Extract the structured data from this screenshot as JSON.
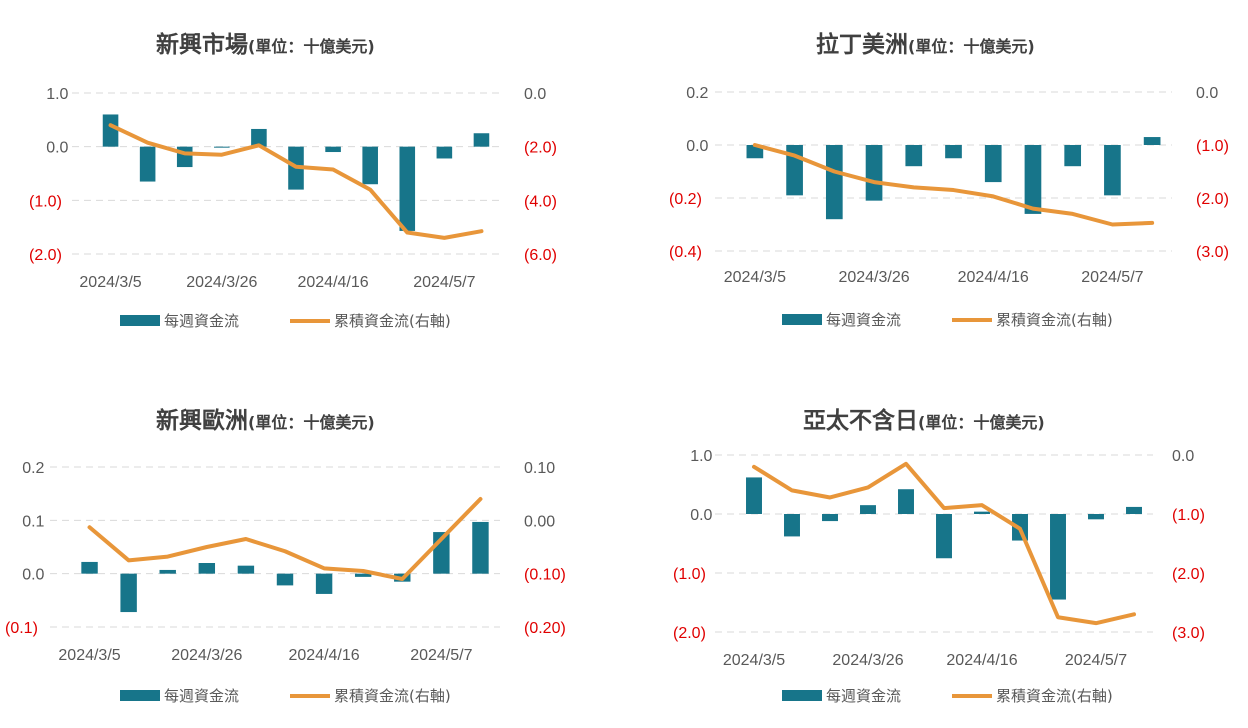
{
  "colors": {
    "bar": "#17758a",
    "line": "#e8963a",
    "text": "#595959",
    "negative": "#e00000",
    "grid": "#d9d9d9",
    "title": "#404040"
  },
  "legend": {
    "bar_label": "每週資金流",
    "line_label": "累積資金流(右軸)"
  },
  "chart_data": [
    {
      "type": "bar+line",
      "title": "新興市場",
      "unit": "(單位：十億美元)",
      "x_ticks": [
        "2024/3/5",
        "2024/3/26",
        "2024/4/16",
        "2024/5/7"
      ],
      "yleft": {
        "ticks": [
          1.0,
          0.0,
          -1.0,
          -2.0
        ],
        "labels": [
          "1.0",
          "0.0",
          "(1.0)",
          "(2.0)"
        ]
      },
      "yright": {
        "ticks": [
          0.0,
          -2.0,
          -4.0,
          -6.0
        ],
        "labels": [
          "0.0",
          "(2.0)",
          "(4.0)",
          "(6.0)"
        ]
      },
      "weekly_flow": [
        0.6,
        -0.65,
        -0.38,
        0.0,
        0.33,
        -0.8,
        -0.1,
        -0.7,
        -1.57,
        -0.22,
        0.25
      ],
      "cumulative_flow": [
        -1.2,
        -1.85,
        -2.25,
        -2.3,
        -1.95,
        -2.75,
        -2.85,
        -3.6,
        -5.2,
        -5.4,
        -5.15
      ]
    },
    {
      "type": "bar+line",
      "title": "拉丁美洲",
      "unit": "(單位：十億美元)",
      "x_ticks": [
        "2024/3/5",
        "2024/3/26",
        "2024/4/16",
        "2024/5/7"
      ],
      "yleft": {
        "ticks": [
          0.2,
          0.0,
          -0.2,
          -0.4
        ],
        "labels": [
          "0.2",
          "0.0",
          "(0.2)",
          "(0.4)"
        ]
      },
      "yright": {
        "ticks": [
          0.0,
          -1.0,
          -2.0,
          -3.0
        ],
        "labels": [
          "0.0",
          "(1.0)",
          "(2.0)",
          "(3.0)"
        ]
      },
      "weekly_flow": [
        -0.05,
        -0.19,
        -0.28,
        -0.21,
        -0.08,
        -0.05,
        -0.14,
        -0.26,
        -0.08,
        -0.19,
        0.03
      ],
      "cumulative_flow": [
        -1.0,
        -1.2,
        -1.5,
        -1.7,
        -1.8,
        -1.85,
        -1.97,
        -2.2,
        -2.3,
        -2.5,
        -2.47
      ]
    },
    {
      "type": "bar+line",
      "title": "新興歐洲",
      "unit": "(單位：十億美元)",
      "x_ticks": [
        "2024/3/5",
        "2024/3/26",
        "2024/4/16",
        "2024/5/7"
      ],
      "yleft": {
        "ticks": [
          0.2,
          0.1,
          0.0,
          -0.1
        ],
        "labels": [
          "0.2",
          "0.1",
          "0.0",
          "(0.1)"
        ]
      },
      "yright": {
        "ticks": [
          0.1,
          0.0,
          -0.1,
          -0.2
        ],
        "labels": [
          "0.10",
          "0.00",
          "(0.10)",
          "(0.20)"
        ]
      },
      "weekly_flow": [
        0.022,
        -0.072,
        0.007,
        0.02,
        0.015,
        -0.022,
        -0.038,
        -0.006,
        -0.015,
        0.078,
        0.097
      ],
      "cumulative_flow": [
        -0.013,
        -0.075,
        -0.068,
        -0.05,
        -0.035,
        -0.058,
        -0.09,
        -0.095,
        -0.11,
        -0.035,
        0.04
      ]
    },
    {
      "type": "bar+line",
      "title": "亞太不含日",
      "unit": "(單位：十億美元)",
      "x_ticks": [
        "2024/3/5",
        "2024/3/26",
        "2024/4/16",
        "2024/5/7"
      ],
      "yleft": {
        "ticks": [
          1.0,
          0.0,
          -1.0,
          -2.0
        ],
        "labels": [
          "1.0",
          "0.0",
          "(1.0)",
          "(2.0)"
        ]
      },
      "yright": {
        "ticks": [
          0.0,
          -1.0,
          -2.0,
          -3.0
        ],
        "labels": [
          "0.0",
          "(1.0)",
          "(2.0)",
          "(3.0)"
        ]
      },
      "weekly_flow": [
        0.62,
        -0.38,
        -0.12,
        0.15,
        0.42,
        -0.75,
        0.04,
        -0.45,
        -1.45,
        -0.09,
        0.12
      ],
      "cumulative_flow": [
        -0.2,
        -0.6,
        -0.72,
        -0.55,
        -0.15,
        -0.9,
        -0.85,
        -1.25,
        -2.75,
        -2.85,
        -2.7
      ]
    }
  ]
}
